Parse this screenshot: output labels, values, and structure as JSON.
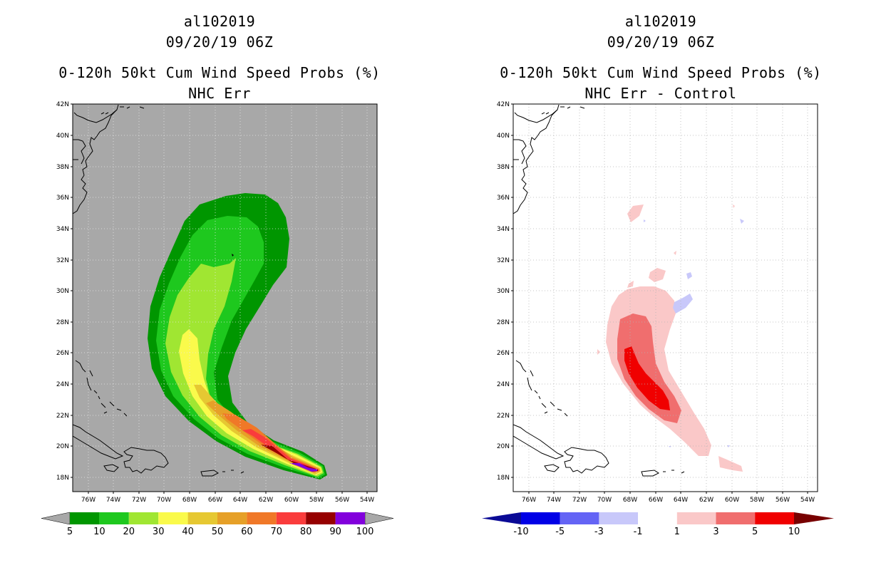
{
  "left": {
    "storm_id": "al102019",
    "datetime": "09/20/19 06Z",
    "product": "0-120h 50kt Cum Wind Speed Probs (%)",
    "subtitle": "NHC Err",
    "background": "#a8a8a8",
    "colorbar": {
      "labels": [
        "5",
        "10",
        "20",
        "30",
        "40",
        "50",
        "60",
        "70",
        "80",
        "90",
        "100"
      ],
      "colors": [
        "#009600",
        "#1ec81e",
        "#a0e632",
        "#fafa4b",
        "#e6c832",
        "#e6a028",
        "#f07828",
        "#fa3c3c",
        "#960000",
        "#8200dc"
      ],
      "end_arrow_color": "#a8a8a8"
    }
  },
  "right": {
    "storm_id": "al102019",
    "datetime": "09/20/19 06Z",
    "product": "0-120h 50kt Cum Wind Speed Probs (%)",
    "subtitle": "NHC Err - Control",
    "background": "#ffffff",
    "colorbar": {
      "labels": [
        "-10",
        "-5",
        "-3",
        "-1",
        "1",
        "3",
        "5",
        "10"
      ],
      "colors": [
        "#0000e6",
        "#6464f5",
        "#c8c8fa",
        "#ffffff",
        "#fac8c8",
        "#f06e6e",
        "#f00000"
      ],
      "low_arrow_color": "#0a0a96",
      "high_arrow_color": "#780000"
    }
  },
  "axes": {
    "lat_labels": [
      "42N",
      "40N",
      "38N",
      "36N",
      "34N",
      "32N",
      "30N",
      "28N",
      "26N",
      "24N",
      "22N",
      "20N",
      "18N"
    ],
    "lon_labels": [
      "76W",
      "74W",
      "72W",
      "70W",
      "68W",
      "66W",
      "64W",
      "62W",
      "60W",
      "58W",
      "56W",
      "54W"
    ]
  }
}
